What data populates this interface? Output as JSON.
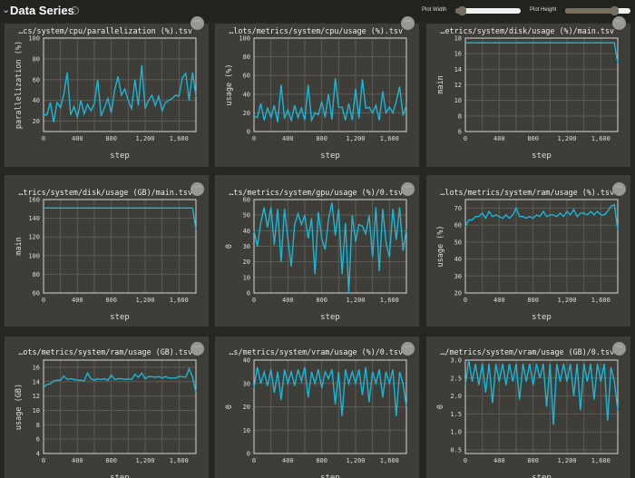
{
  "header": {
    "title": "Data Series",
    "collapse_icon": "chevron-down-icon",
    "info_icon": "info-icon",
    "plot_width_label": "Plot Width",
    "plot_height_label": "Plot Height",
    "plot_width_value": 0.1,
    "plot_height_value": 0.75
  },
  "more_icon": "ellipsis-icon",
  "colors": {
    "line": "#1bb6d8",
    "panel": "#3e3d38",
    "grid": "#5c5b56",
    "background": "#262622"
  },
  "chart_data": [
    {
      "type": "line",
      "title": "…cs/system/cpu/parallelization (%).tsv",
      "xlabel": "step",
      "ylabel": "parallelization (%)",
      "xlim": [
        0,
        1800
      ],
      "ylim": [
        10,
        100
      ],
      "yticks": [
        20,
        40,
        60,
        80,
        100
      ],
      "ytick_labels": [
        "20",
        "40",
        "60",
        "80",
        "100"
      ],
      "xticks": [
        0,
        400,
        800,
        1200,
        1600
      ],
      "xtick_labels": [
        "0",
        "400",
        "800",
        "1,200",
        "1,600"
      ],
      "grid": true,
      "values": [
        26,
        26,
        38,
        19,
        38,
        33,
        46,
        67,
        26,
        34,
        24,
        40,
        27,
        36,
        30,
        37,
        60,
        25,
        33,
        42,
        28,
        50,
        63,
        45,
        51,
        40,
        32,
        60,
        35,
        74,
        32,
        40,
        45,
        35,
        44,
        30,
        38,
        40,
        42,
        45,
        44,
        62,
        66,
        40,
        67,
        44
      ]
    },
    {
      "type": "line",
      "title": "…lots/metrics/system/cpu/usage (%).tsv",
      "xlabel": "step",
      "ylabel": "usage (%)",
      "xlim": [
        0,
        1800
      ],
      "ylim": [
        0,
        100
      ],
      "yticks": [
        0,
        20,
        40,
        60,
        80,
        100
      ],
      "ytick_labels": [
        "0",
        "20",
        "40",
        "60",
        "80",
        "100"
      ],
      "xticks": [
        0,
        400,
        800,
        1200,
        1600
      ],
      "xtick_labels": [
        "0",
        "400",
        "800",
        "1,200",
        "1,600"
      ],
      "grid": true,
      "values": [
        16,
        15,
        30,
        12,
        25,
        15,
        28,
        10,
        50,
        14,
        23,
        12,
        28,
        15,
        25,
        12,
        50,
        12,
        20,
        18,
        32,
        15,
        40,
        13,
        57,
        26,
        26,
        12,
        30,
        12,
        46,
        14,
        56,
        25,
        26,
        20,
        28,
        12,
        43,
        20,
        26,
        20,
        32,
        48,
        17,
        28
      ]
    },
    {
      "type": "line",
      "title": "…etrics/system/disk/usage (%)/main.tsv",
      "xlabel": "step",
      "ylabel": "main",
      "xlim": [
        0,
        1800
      ],
      "ylim": [
        6,
        18
      ],
      "yticks": [
        6,
        8,
        10,
        12,
        14,
        16,
        18
      ],
      "ytick_labels": [
        "6",
        "8",
        "10",
        "12",
        "14",
        "16",
        "18"
      ],
      "xticks": [
        0,
        400,
        800,
        1200,
        1600
      ],
      "xtick_labels": [
        "0",
        "400",
        "800",
        "1,200",
        "1,600"
      ],
      "grid": true,
      "values": [
        17.4,
        17.4,
        17.4,
        17.4,
        17.4,
        17.4,
        17.4,
        17.4,
        17.4,
        17.4,
        17.4,
        17.4,
        17.4,
        17.4,
        17.4,
        17.4,
        17.4,
        17.4,
        17.4,
        17.4,
        17.4,
        17.4,
        17.4,
        17.4,
        17.4,
        17.4,
        17.4,
        17.4,
        17.4,
        17.4,
        17.4,
        17.4,
        17.4,
        17.4,
        17.4,
        17.4,
        17.4,
        17.4,
        17.4,
        17.4,
        17.4,
        17.4,
        17.4,
        17.4,
        17.4,
        14.8
      ]
    },
    {
      "type": "line",
      "title": "…trics/system/disk/usage (GB)/main.tsv",
      "xlabel": "step",
      "ylabel": "main",
      "xlim": [
        0,
        1800
      ],
      "ylim": [
        60,
        160
      ],
      "yticks": [
        60,
        80,
        100,
        120,
        140,
        160
      ],
      "ytick_labels": [
        "60",
        "80",
        "100",
        "120",
        "140",
        "160"
      ],
      "xticks": [
        0,
        400,
        800,
        1200,
        1600
      ],
      "xtick_labels": [
        "0",
        "400",
        "800",
        "1,200",
        "1,600"
      ],
      "grid": true,
      "values": [
        151,
        151,
        151,
        151,
        151,
        151,
        151,
        151,
        151,
        151,
        151,
        151,
        151,
        151,
        151,
        151,
        151,
        151,
        151,
        151,
        151,
        151,
        151,
        151,
        151,
        151,
        151,
        151,
        151,
        151,
        151,
        151,
        151,
        151,
        151,
        151,
        151,
        151,
        151,
        151,
        151,
        151,
        151,
        151,
        151,
        128
      ]
    },
    {
      "type": "line",
      "title": "…ts/metrics/system/gpu/usage (%)/0.tsv",
      "xlabel": "step",
      "ylabel": "0",
      "xlim": [
        0,
        1800
      ],
      "ylim": [
        0,
        60
      ],
      "yticks": [
        0,
        10,
        20,
        30,
        40,
        50,
        60
      ],
      "ytick_labels": [
        "0",
        "10",
        "20",
        "30",
        "40",
        "50",
        "60"
      ],
      "xticks": [
        0,
        400,
        800,
        1200,
        1600
      ],
      "xtick_labels": [
        "0",
        "400",
        "800",
        "1,200",
        "1,600"
      ],
      "grid": true,
      "values": [
        40,
        30,
        45,
        55,
        42,
        55,
        31,
        54,
        20,
        54,
        35,
        17,
        44,
        51,
        44,
        50,
        35,
        48,
        12,
        52,
        35,
        28,
        47,
        58,
        37,
        54,
        12,
        45,
        0,
        50,
        33,
        44,
        43,
        38,
        50,
        23,
        55,
        14,
        54,
        32,
        23,
        54,
        34,
        55,
        27,
        41
      ]
    },
    {
      "type": "line",
      "title": "…lots/metrics/system/ram/usage (%).tsv",
      "xlabel": "step",
      "ylabel": "usage (%)",
      "xlim": [
        0,
        1800
      ],
      "ylim": [
        20,
        75
      ],
      "yticks": [
        20,
        30,
        40,
        50,
        60,
        70
      ],
      "ytick_labels": [
        "20",
        "30",
        "40",
        "50",
        "60",
        "70"
      ],
      "xticks": [
        0,
        400,
        800,
        1200,
        1600
      ],
      "xtick_labels": [
        "0",
        "400",
        "800",
        "1,200",
        "1,600"
      ],
      "grid": true,
      "values": [
        59,
        63,
        63,
        65,
        65,
        67,
        64,
        68,
        65,
        66,
        65,
        64,
        66,
        64,
        66,
        70,
        65,
        65,
        64,
        65,
        64,
        66,
        65,
        68,
        65,
        66,
        66,
        65,
        67,
        65,
        68,
        66,
        69,
        65,
        67,
        67,
        66,
        68,
        66,
        68,
        66,
        66,
        68,
        71,
        72,
        57
      ]
    },
    {
      "type": "line",
      "title": "…ots/metrics/system/ram/usage (GB).tsv",
      "xlabel": "step",
      "ylabel": "usage (GB)",
      "xlim": [
        0,
        1800
      ],
      "ylim": [
        4,
        17
      ],
      "yticks": [
        4,
        6,
        8,
        10,
        12,
        14,
        16
      ],
      "ytick_labels": [
        "4",
        "6",
        "8",
        "10",
        "12",
        "14",
        "16"
      ],
      "xticks": [
        0,
        400,
        800,
        1200,
        1600
      ],
      "xtick_labels": [
        "0",
        "400",
        "800",
        "1,200",
        "1,600"
      ],
      "grid": true,
      "values": [
        13.2,
        13.6,
        13.7,
        14.1,
        14.2,
        14.2,
        14.8,
        14.3,
        14.4,
        14.3,
        14.2,
        14.2,
        14.1,
        15.2,
        14.4,
        14.2,
        14.4,
        14.3,
        14.4,
        14.2,
        14.9,
        14.3,
        14.4,
        14.4,
        14.3,
        14.4,
        14.3,
        15.0,
        14.6,
        15.2,
        14.4,
        14.7,
        14.7,
        14.6,
        14.7,
        14.5,
        14.7,
        14.5,
        14.5,
        14.5,
        14.7,
        14.7,
        14.6,
        15.8,
        14.6,
        12.5
      ]
    },
    {
      "type": "line",
      "title": "…s/metrics/system/vram/usage (%)/0.tsv",
      "xlabel": "step",
      "ylabel": "0",
      "xlim": [
        0,
        1800
      ],
      "ylim": [
        0,
        40
      ],
      "yticks": [
        0,
        10,
        20,
        30,
        40
      ],
      "ytick_labels": [
        "0",
        "10",
        "20",
        "30",
        "40"
      ],
      "xticks": [
        0,
        400,
        800,
        1200,
        1600
      ],
      "xtick_labels": [
        "0",
        "400",
        "800",
        "1,200",
        "1,600"
      ],
      "grid": true,
      "values": [
        28,
        37,
        30,
        35,
        29,
        36,
        26,
        35,
        23,
        36,
        30,
        35,
        29,
        36,
        31,
        37,
        24,
        35,
        30,
        36,
        28,
        35,
        32,
        36,
        21,
        35,
        16,
        36,
        30,
        35,
        30,
        36,
        25,
        37,
        22,
        35,
        30,
        36,
        24,
        35,
        30,
        36,
        16,
        35,
        30,
        20
      ]
    },
    {
      "type": "line",
      "title": "…/metrics/system/vram/usage (GB)/0.tsv",
      "xlabel": "step",
      "ylabel": "0",
      "xlim": [
        0,
        1800
      ],
      "ylim": [
        0.4,
        3.0
      ],
      "yticks": [
        0.5,
        1.0,
        1.5,
        2.0,
        2.5,
        3.0
      ],
      "ytick_labels": [
        "0.5",
        "1.0",
        "1.5",
        "2.0",
        "2.5",
        "3.0"
      ],
      "xticks": [
        0,
        400,
        800,
        1200,
        1600
      ],
      "xtick_labels": [
        "0",
        "400",
        "800",
        "1,200",
        "1,600"
      ],
      "grid": true,
      "values": [
        2.3,
        3.0,
        2.4,
        2.9,
        2.3,
        2.9,
        2.1,
        2.9,
        1.8,
        2.9,
        2.4,
        2.9,
        2.3,
        2.9,
        2.4,
        2.9,
        1.9,
        2.9,
        2.4,
        2.9,
        2.3,
        2.9,
        2.5,
        2.9,
        1.7,
        2.9,
        1.2,
        2.9,
        2.4,
        2.9,
        2.4,
        2.9,
        2.0,
        2.9,
        1.6,
        2.9,
        2.4,
        2.9,
        1.9,
        2.9,
        2.4,
        2.9,
        1.3,
        2.8,
        2.4,
        1.6
      ]
    }
  ]
}
